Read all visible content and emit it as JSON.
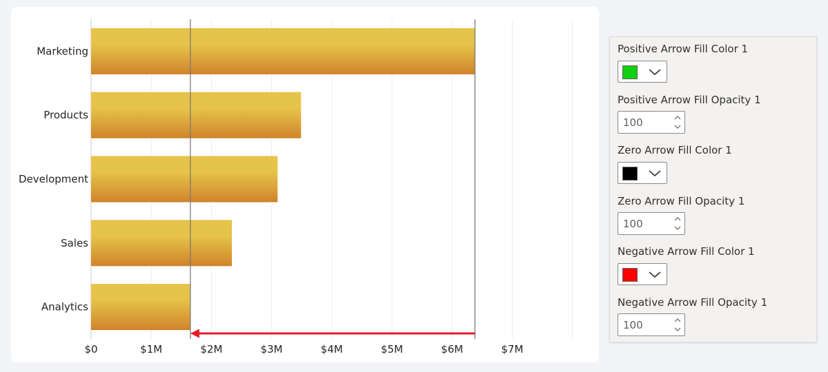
{
  "chart_data": {
    "type": "bar",
    "orientation": "horizontal",
    "categories": [
      "Marketing",
      "Products",
      "Development",
      "Sales",
      "Analytics"
    ],
    "values": [
      6.38,
      3.49,
      3.1,
      2.34,
      1.65
    ],
    "value_unit": "$M",
    "x_ticks": [
      "$0",
      "$1M",
      "$2M",
      "$3M",
      "$4M",
      "$5M",
      "$6M",
      "$7M"
    ],
    "xlim": [
      0,
      8
    ],
    "grid": true,
    "bar_colors": [
      "#e6c34a",
      "#d0832a"
    ],
    "reference_lines": [
      1.65,
      6.38
    ],
    "arrow": {
      "from": 6.38,
      "to": 1.65,
      "color": "#e8182a",
      "direction": "negative"
    }
  },
  "format_panel": {
    "positive_color": {
      "label": "Positive Arrow Fill Color 1",
      "value": "#10d010"
    },
    "positive_opacity": {
      "label": "Positive Arrow Fill Opacity 1",
      "value": "100"
    },
    "zero_color": {
      "label": "Zero Arrow Fill Color 1",
      "value": "#000000"
    },
    "zero_opacity": {
      "label": "Zero Arrow Fill Opacity 1",
      "value": "100"
    },
    "negative_color": {
      "label": "Negative Arrow Fill Color 1",
      "value": "#ff0000"
    },
    "negative_opacity": {
      "label": "Negative Arrow Fill Opacity 1",
      "value": "100"
    }
  }
}
